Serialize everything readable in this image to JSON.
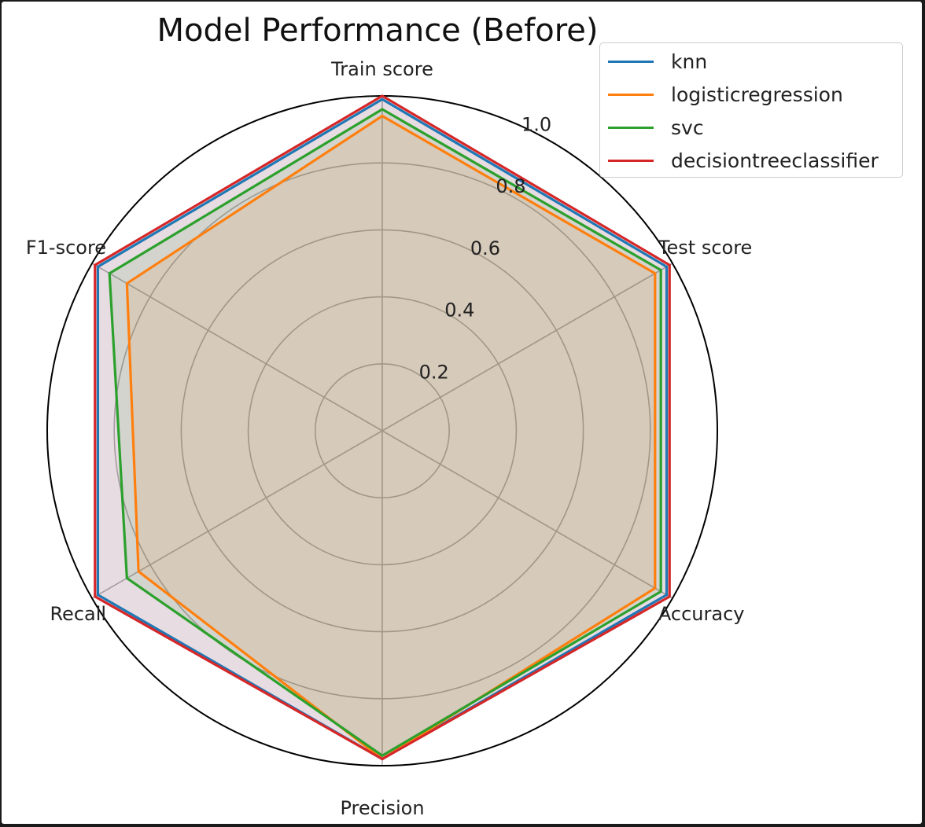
{
  "chart_data": {
    "type": "radar",
    "title": "Model Performance (Before)",
    "axes": [
      "Train score",
      "Test score",
      "Accuracy",
      "Precision",
      "Recall",
      "F1-score"
    ],
    "radial_ticks": [
      "0.2",
      "0.4",
      "0.6",
      "0.8",
      "1.0"
    ],
    "radial_tick_values": [
      0.2,
      0.4,
      0.6,
      0.8,
      1.0
    ],
    "rlim": [
      0,
      1.0
    ],
    "grid": true,
    "legend_position": "top-right",
    "series": [
      {
        "name": "knn",
        "color": "#1f77b4",
        "values": [
          0.99,
          0.98,
          0.98,
          0.98,
          0.98,
          0.98
        ]
      },
      {
        "name": "logisticregression",
        "color": "#ff7f0e",
        "values": [
          0.94,
          0.94,
          0.94,
          0.98,
          0.84,
          0.88
        ]
      },
      {
        "name": "svc",
        "color": "#2ca02c",
        "values": [
          0.96,
          0.96,
          0.96,
          0.97,
          0.88,
          0.94
        ]
      },
      {
        "name": "decisiontreeclassifier",
        "color": "#d62728",
        "values": [
          1.0,
          0.99,
          0.99,
          0.98,
          0.99,
          0.99
        ]
      }
    ]
  }
}
